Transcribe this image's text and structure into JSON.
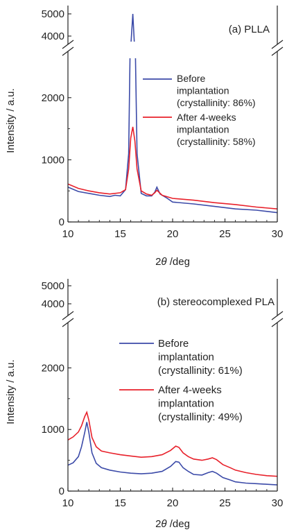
{
  "chart_data": [
    {
      "type": "line",
      "title": "(a) PLLA",
      "xlabel": "2θ /deg",
      "ylabel": "Intensity / a.u.",
      "xlim": [
        10,
        30
      ],
      "ylim_lower": [
        0,
        2500
      ],
      "ylim_upper": [
        3800,
        5000
      ],
      "axis_break": true,
      "xticks": [
        "10",
        "15",
        "20",
        "25",
        "30"
      ],
      "yticks_lower": [
        "0",
        "1000",
        "2000"
      ],
      "yticks_upper": [
        "4000",
        "5000"
      ],
      "grid": false,
      "legend_position": "right",
      "series": [
        {
          "name": "Before implantation (crystallinity: 86%)",
          "color": "#3b4aa8",
          "x": [
            10,
            11,
            12,
            13,
            14,
            14.5,
            15,
            15.5,
            15.8,
            16.0,
            16.2,
            16.4,
            16.6,
            17,
            17.5,
            18,
            18.3,
            18.5,
            18.8,
            19.5,
            20,
            22,
            24,
            26,
            28,
            30
          ],
          "y": [
            560,
            490,
            460,
            430,
            410,
            430,
            420,
            520,
            1100,
            3500,
            5000,
            3200,
            1100,
            460,
            420,
            420,
            480,
            560,
            450,
            380,
            320,
            290,
            250,
            210,
            190,
            150
          ]
        },
        {
          "name": "After 4-weeks implantation (crystallinity: 58%)",
          "color": "#e8202a",
          "x": [
            10,
            11,
            12,
            13,
            14,
            15,
            15.5,
            15.8,
            16.0,
            16.2,
            16.4,
            16.6,
            17,
            17.5,
            18,
            18.3,
            18.5,
            19,
            20,
            22,
            24,
            26,
            28,
            30
          ],
          "y": [
            610,
            540,
            500,
            470,
            450,
            470,
            520,
            850,
            1350,
            1530,
            1300,
            850,
            500,
            450,
            430,
            470,
            510,
            430,
            380,
            350,
            310,
            280,
            240,
            210
          ]
        }
      ]
    },
    {
      "type": "line",
      "title": "(b) stereocomplexed PLA",
      "xlabel": "2θ /deg",
      "ylabel": "Intensity / a.u.",
      "xlim": [
        10,
        30
      ],
      "ylim_lower": [
        0,
        2500
      ],
      "ylim_upper": [
        3800,
        5000
      ],
      "axis_break": true,
      "xticks": [
        "10",
        "15",
        "20",
        "25",
        "30"
      ],
      "yticks_lower": [
        "0",
        "1000",
        "2000"
      ],
      "yticks_upper": [
        "4000",
        "5000"
      ],
      "grid": false,
      "legend_position": "right",
      "series": [
        {
          "name": "Before implantation (crystallinity: 61%)",
          "color": "#3b4aa8",
          "x": [
            10,
            10.5,
            11,
            11.3,
            11.6,
            11.8,
            12.0,
            12.3,
            12.7,
            13.2,
            14,
            15,
            16,
            17,
            18,
            19,
            19.8,
            20.3,
            20.6,
            21,
            21.5,
            22,
            22.8,
            23.4,
            23.8,
            24.2,
            24.8,
            25.5,
            26,
            27,
            28,
            29,
            30
          ],
          "y": [
            420,
            460,
            560,
            720,
            950,
            1120,
            950,
            620,
            450,
            380,
            340,
            310,
            290,
            280,
            290,
            320,
            400,
            480,
            470,
            380,
            320,
            270,
            260,
            300,
            320,
            290,
            220,
            180,
            150,
            130,
            120,
            110,
            100
          ]
        },
        {
          "name": "After 4-weeks implantation (crystallinity: 49%)",
          "color": "#e8202a",
          "x": [
            10,
            10.5,
            11,
            11.3,
            11.6,
            11.8,
            12.0,
            12.3,
            12.7,
            13.2,
            14,
            15,
            16,
            17,
            18,
            19,
            19.8,
            20.3,
            20.6,
            21,
            21.5,
            22,
            22.8,
            23.4,
            23.8,
            24.2,
            24.8,
            25.5,
            26,
            27,
            28,
            29,
            30
          ],
          "y": [
            830,
            880,
            960,
            1060,
            1210,
            1280,
            1150,
            870,
            720,
            650,
            620,
            590,
            570,
            550,
            560,
            590,
            660,
            730,
            710,
            620,
            560,
            520,
            500,
            520,
            540,
            510,
            430,
            380,
            340,
            300,
            270,
            250,
            240
          ]
        }
      ]
    }
  ]
}
